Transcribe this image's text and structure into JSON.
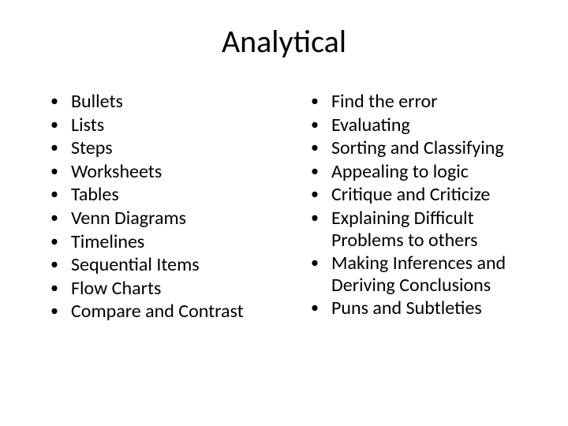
{
  "title": "Analytical",
  "left_column": [
    "Bullets",
    "Lists",
    "Steps",
    "Worksheets",
    "Tables",
    "Venn Diagrams",
    "Timelines",
    "Sequential Items",
    "Flow Charts",
    "Compare and Contrast"
  ],
  "right_column": [
    "Find the error",
    "Evaluating",
    "Sorting and Classifying",
    "Appealing to logic",
    "Critique and Criticize",
    "Explaining Difficult Problems to others",
    "Making Inferences and Deriving Conclusions",
    "Puns and Subtleties"
  ],
  "styling": {
    "background_color": "#ffffff",
    "text_color": "#000000",
    "title_fontsize": 40,
    "body_fontsize": 24,
    "font_family": "Calibri"
  }
}
